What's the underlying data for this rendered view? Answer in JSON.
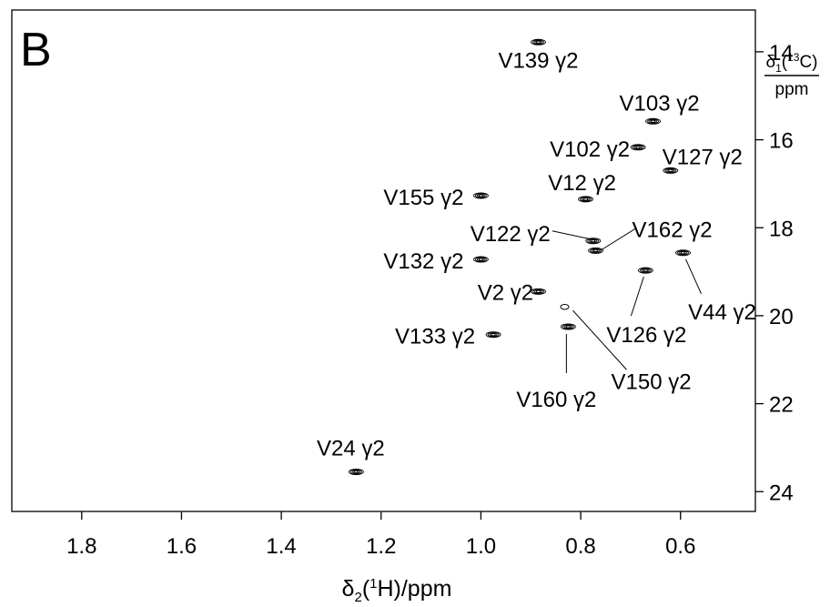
{
  "chart_data": {
    "type": "scatter",
    "panel_label": "B",
    "xlabel": {
      "main": "δ",
      "sub": "2",
      "pre": "(",
      "sup": "1",
      "post": "H)/ppm"
    },
    "ylabel": {
      "main": "δ",
      "sub": "1",
      "pre": "(",
      "sup": "13",
      "post": "C)",
      "unit": "ppm"
    },
    "xlim": [
      1.94,
      0.45
    ],
    "ylim": [
      24.45,
      13.05
    ],
    "xticks": [
      "1.8",
      "1.6",
      "1.4",
      "1.2",
      "1.0",
      "0.8",
      "0.6"
    ],
    "yticks": [
      "14",
      "16",
      "18",
      "20",
      "22",
      "24"
    ],
    "xtick_values": [
      1.8,
      1.6,
      1.4,
      1.2,
      1.0,
      0.8,
      0.6
    ],
    "ytick_values": [
      14,
      16,
      18,
      20,
      22,
      24
    ],
    "peaks": [
      {
        "label": "V139 γ2",
        "x": 0.885,
        "y": 13.78
      },
      {
        "label": "V103 γ2",
        "x": 0.655,
        "y": 15.58
      },
      {
        "label": "V102 γ2",
        "x": 0.685,
        "y": 16.17
      },
      {
        "label": "V127 γ2",
        "x": 0.62,
        "y": 16.7
      },
      {
        "label": "V12 γ2",
        "x": 0.79,
        "y": 17.35
      },
      {
        "label": "V155 γ2",
        "x": 1.0,
        "y": 17.27
      },
      {
        "label": "V122 γ2",
        "x": 0.775,
        "y": 18.3
      },
      {
        "label": "V162 γ2",
        "x": 0.77,
        "y": 18.52
      },
      {
        "label": "V132 γ2",
        "x": 1.0,
        "y": 18.72
      },
      {
        "label": "V44 γ2",
        "x": 0.595,
        "y": 18.57
      },
      {
        "label": "V126 γ2",
        "x": 0.67,
        "y": 18.97
      },
      {
        "label": "V2 γ2",
        "x": 0.885,
        "y": 19.45
      },
      {
        "label": "V150 γ2",
        "x": 0.832,
        "y": 19.8
      },
      {
        "label": "V160 γ2",
        "x": 0.825,
        "y": 20.25
      },
      {
        "label": "V133 γ2",
        "x": 0.975,
        "y": 20.43
      },
      {
        "label": "V24 γ2",
        "x": 1.25,
        "y": 23.55
      }
    ],
    "grid": false
  }
}
